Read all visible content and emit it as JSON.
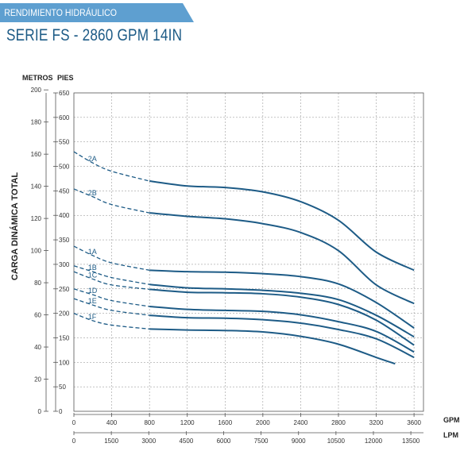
{
  "header": {
    "banner_text": "RENDIMIENTO HIDRÁULICO",
    "subtitle": "SERIE FS - 2860 GPM 14IN",
    "banner_color": "#5e9fd0",
    "text_color": "#1d5b86"
  },
  "chart_data": {
    "type": "line",
    "title": "SERIE FS - 2860 GPM 14IN",
    "ylabel": "CARGA DINÁMICA TOTAL",
    "y_units_left": "METROS",
    "y_units_right": "PIES",
    "x_units_top": "GPM",
    "x_units_bottom": "LPM",
    "x_gpm_ticks": [
      "0",
      "400",
      "800",
      "1200",
      "1600",
      "2000",
      "2400",
      "2800",
      "3200",
      "3600"
    ],
    "x_lpm_ticks": [
      "0",
      "1500",
      "3000",
      "4500",
      "6000",
      "7500",
      "9000",
      "10500",
      "12000",
      "13500"
    ],
    "y_meters_ticks": [
      "200",
      "180",
      "160",
      "140",
      "120",
      "100",
      "80",
      "60",
      "40",
      "20",
      "0"
    ],
    "y_feet_ticks": [
      "650",
      "600",
      "550",
      "500",
      "450",
      "400",
      "350",
      "300",
      "250",
      "200",
      "150",
      "100",
      "50",
      "0"
    ],
    "xlim_gpm": [
      0,
      3700
    ],
    "ylim_feet": [
      0,
      650
    ],
    "grid": true,
    "line_color": "#1d5b86",
    "series": [
      {
        "name": "2A",
        "x": [
          0,
          200,
          400,
          800,
          1200,
          1600,
          2000,
          2400,
          2800,
          3200,
          3600
        ],
        "y": [
          530,
          507,
          490,
          470,
          460,
          457,
          448,
          428,
          390,
          325,
          288
        ]
      },
      {
        "name": "2B",
        "x": [
          0,
          200,
          400,
          800,
          1200,
          1600,
          2000,
          2400,
          2800,
          3200,
          3600
        ],
        "y": [
          454,
          438,
          422,
          405,
          398,
          393,
          383,
          365,
          328,
          258,
          220
        ]
      },
      {
        "name": "1A",
        "x": [
          0,
          200,
          400,
          800,
          1200,
          1600,
          2000,
          2400,
          2800,
          3200,
          3600
        ],
        "y": [
          337,
          318,
          303,
          288,
          285,
          284,
          281,
          275,
          260,
          222,
          170
        ]
      },
      {
        "name": "1B",
        "x": [
          0,
          200,
          400,
          800,
          1200,
          1600,
          2000,
          2400,
          2800,
          3200,
          3600
        ],
        "y": [
          297,
          285,
          273,
          259,
          252,
          250,
          247,
          241,
          228,
          196,
          152
        ]
      },
      {
        "name": "1C",
        "x": [
          0,
          200,
          400,
          800,
          1200,
          1600,
          2000,
          2400,
          2800,
          3200,
          3600
        ],
        "y": [
          285,
          270,
          258,
          249,
          243,
          242,
          240,
          233,
          218,
          186,
          135
        ]
      },
      {
        "name": "1D",
        "x": [
          0,
          200,
          400,
          800,
          1200,
          1600,
          2000,
          2400,
          2800,
          3200,
          3600
        ],
        "y": [
          250,
          238,
          226,
          214,
          208,
          206,
          204,
          197,
          183,
          163,
          121
        ]
      },
      {
        "name": "1E",
        "x": [
          0,
          200,
          400,
          800,
          1200,
          1600,
          2000,
          2400,
          2800,
          3200,
          3600
        ],
        "y": [
          230,
          217,
          206,
          196,
          191,
          190,
          187,
          180,
          167,
          148,
          110
        ]
      },
      {
        "name": "1F",
        "x": [
          0,
          200,
          400,
          800,
          1200,
          1600,
          2000,
          2400,
          2800,
          3200,
          3400
        ],
        "y": [
          200,
          185,
          176,
          168,
          166,
          165,
          162,
          153,
          137,
          110,
          97
        ]
      }
    ],
    "dashed_until_gpm": 800
  }
}
